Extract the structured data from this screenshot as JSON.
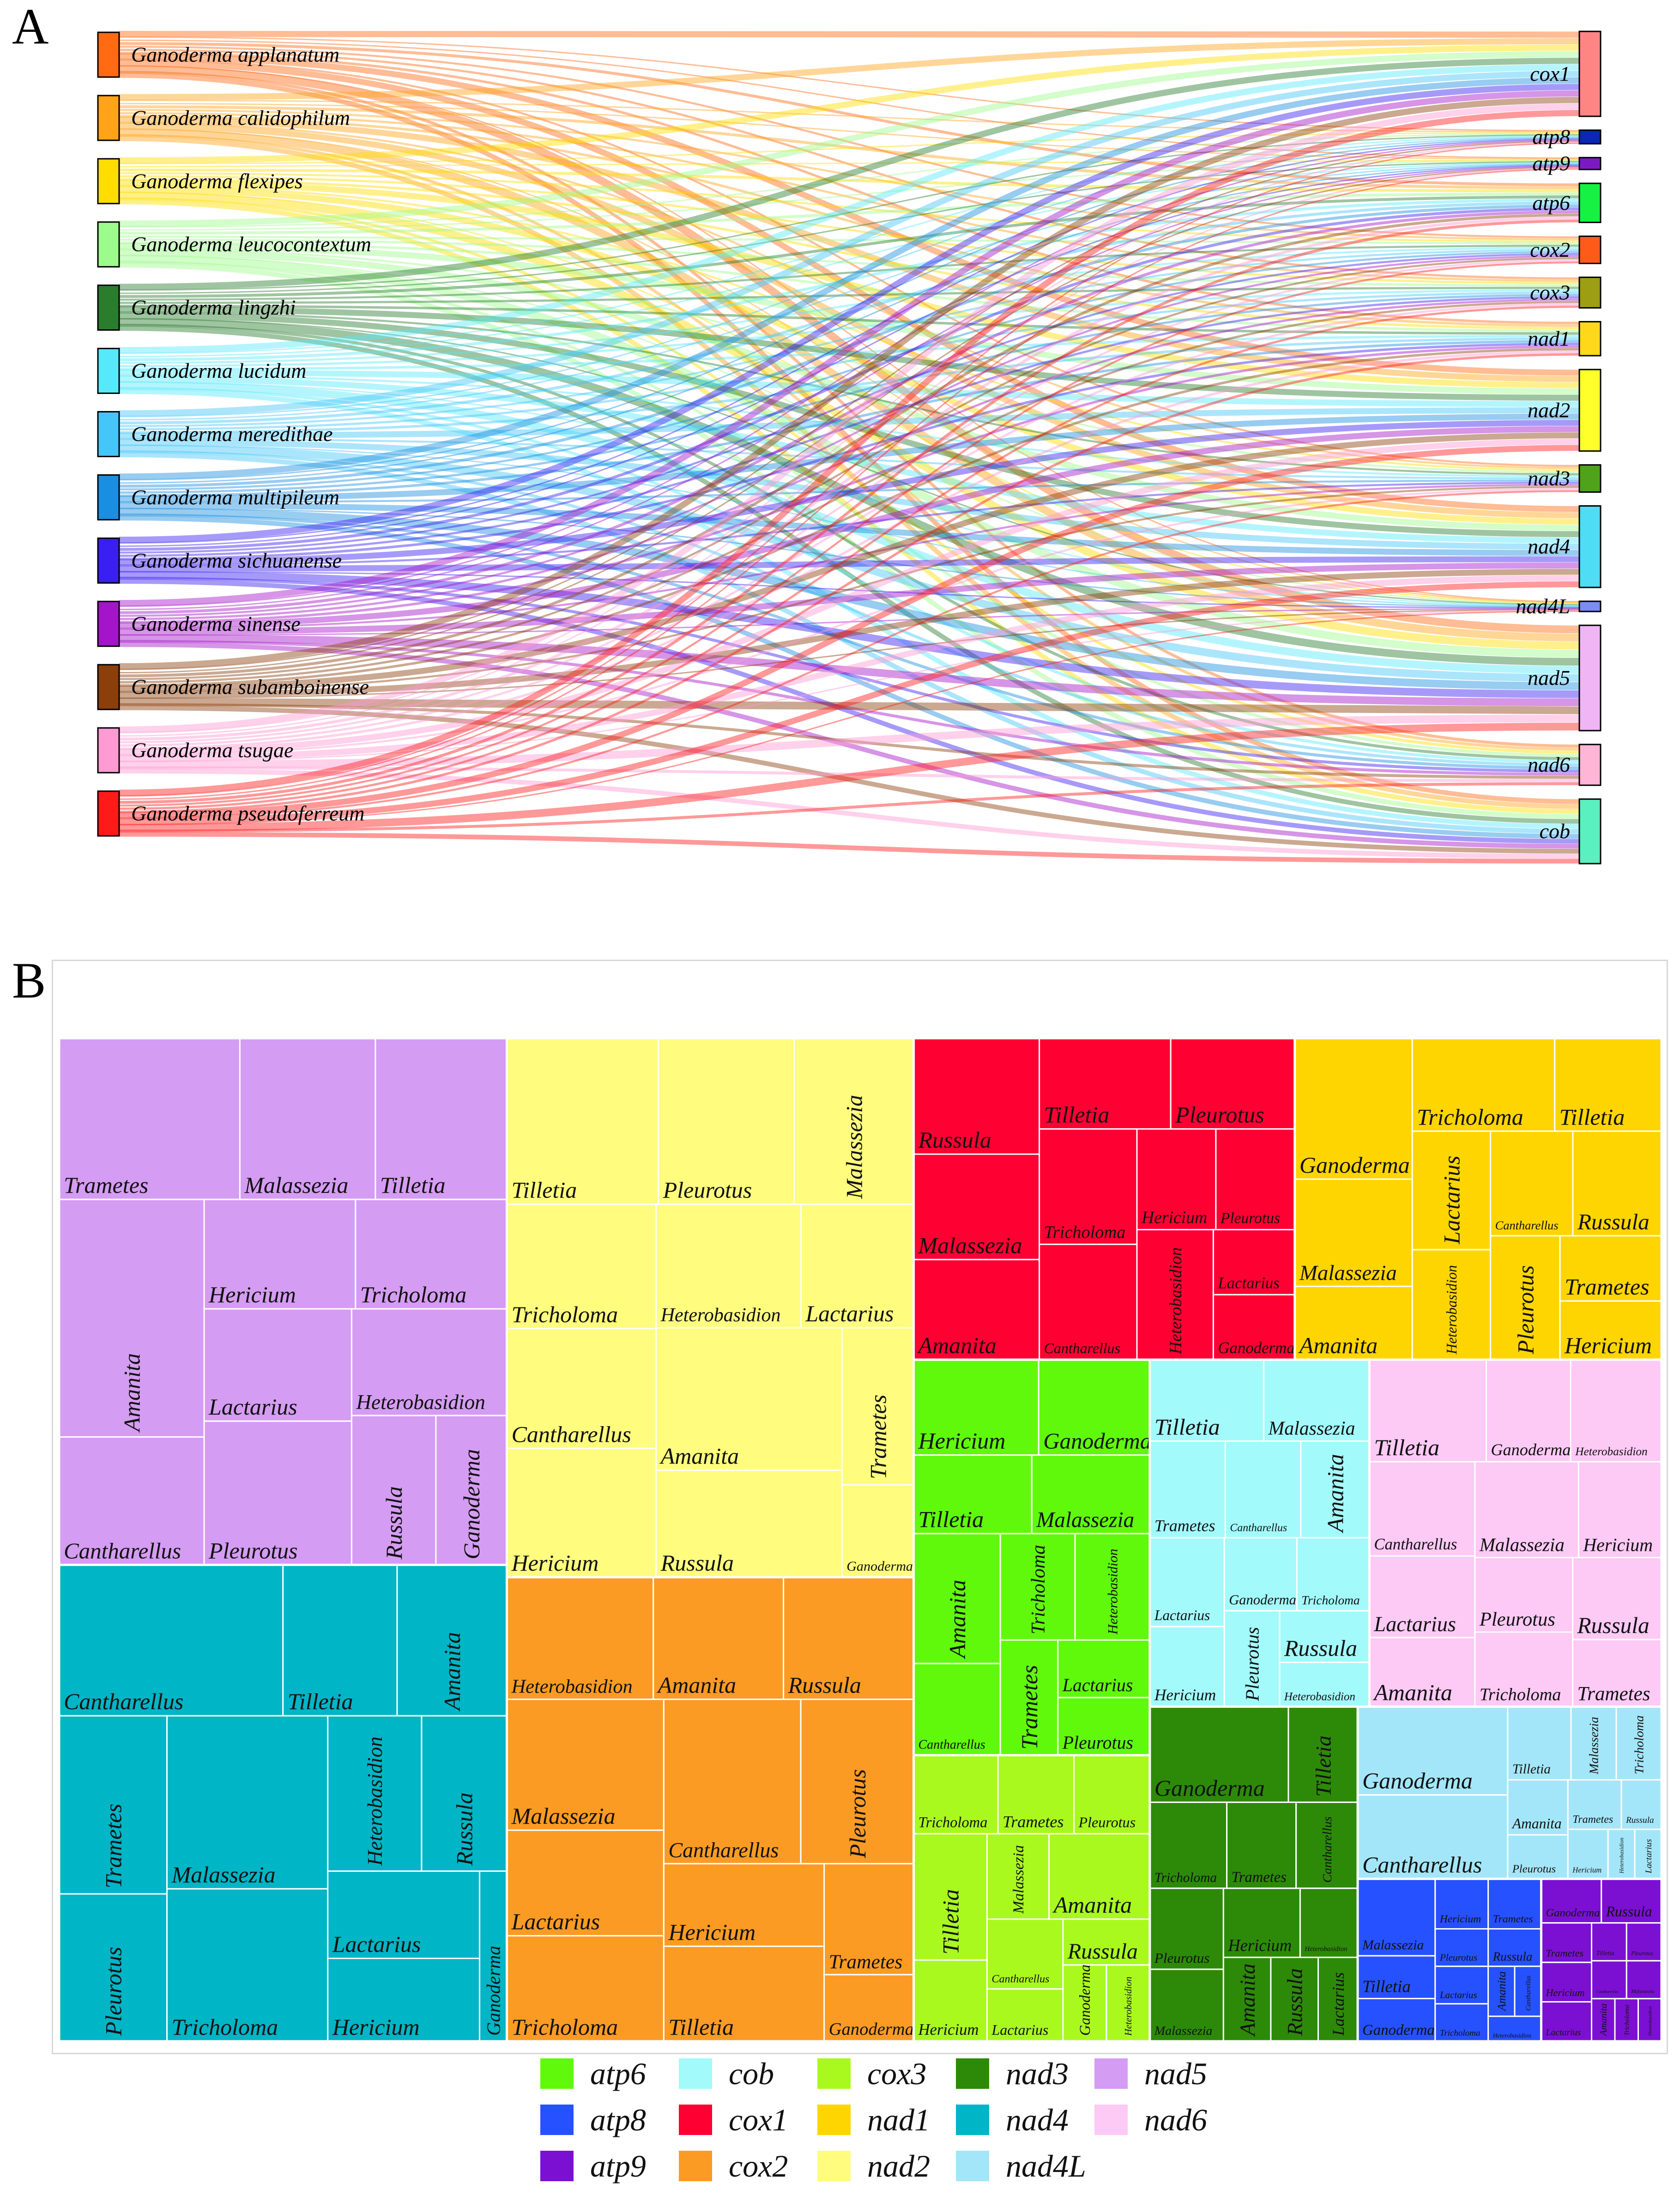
{
  "panels": {
    "a": "A",
    "b": "B"
  },
  "sankey": {
    "species": [
      {
        "name": "Ganoderma applanatum",
        "color": "#ff6a13"
      },
      {
        "name": "Ganoderma calidophilum",
        "color": "#ffa31a"
      },
      {
        "name": "Ganoderma flexipes",
        "color": "#ffdd00"
      },
      {
        "name": "Ganoderma leucocontextum",
        "color": "#9dfa8c"
      },
      {
        "name": "Ganoderma lingzhi",
        "color": "#2b7d2e"
      },
      {
        "name": "Ganoderma lucidum",
        "color": "#58e8fb"
      },
      {
        "name": "Ganoderma meredithae",
        "color": "#45c5f8"
      },
      {
        "name": "Ganoderma multipileum",
        "color": "#1a8ee0"
      },
      {
        "name": "Ganoderma sichuanense",
        "color": "#3a1ff2"
      },
      {
        "name": "Ganoderma sinense",
        "color": "#a414c8"
      },
      {
        "name": "Ganoderma subamboinense",
        "color": "#8b3f0a"
      },
      {
        "name": "Ganoderma tsugae",
        "color": "#ff9ad2"
      },
      {
        "name": "Ganoderma pseudoferreum",
        "color": "#ff1a1a"
      }
    ],
    "genes": [
      {
        "name": "cox1",
        "color": "#ff8585",
        "weight": 5
      },
      {
        "name": "atp8",
        "color": "#0a27b5",
        "weight": 0.8
      },
      {
        "name": "atp9",
        "color": "#7c1ac2",
        "weight": 0.7
      },
      {
        "name": "atp6",
        "color": "#16f243",
        "weight": 2.3
      },
      {
        "name": "cox2",
        "color": "#ff5a1a",
        "weight": 1.6
      },
      {
        "name": "cox3",
        "color": "#9e9e14",
        "weight": 1.8
      },
      {
        "name": "nad1",
        "color": "#ffd81a",
        "weight": 2.0
      },
      {
        "name": "nad2",
        "color": "#ffff2a",
        "weight": 4.8
      },
      {
        "name": "nad3",
        "color": "#4fa31a",
        "weight": 1.6
      },
      {
        "name": "nad4",
        "color": "#4fdcf5",
        "weight": 4.8
      },
      {
        "name": "nad4L",
        "color": "#7a8cf5",
        "weight": 0.6
      },
      {
        "name": "nad5",
        "color": "#f0b5f5",
        "weight": 6.2
      },
      {
        "name": "nad6",
        "color": "#ffb5d5",
        "weight": 2.4
      },
      {
        "name": "cob",
        "color": "#5af0c0",
        "weight": 3.8
      }
    ]
  },
  "treemap": {
    "groups": [
      {
        "gene": "nad5",
        "color": "#d59cf3",
        "cells": [
          [
            "Trametes",
            44
          ],
          [
            "Malassezia",
            33
          ],
          [
            "Tilletia",
            32
          ],
          [
            "Amanita",
            52
          ],
          [
            "Cantharellus",
            28
          ],
          [
            "Hericium",
            25
          ],
          [
            "Tricholoma",
            25
          ],
          [
            "Lactarius",
            25
          ],
          [
            "Pleurotus",
            32
          ],
          [
            "Heterobasidion",
            25
          ],
          [
            "Russula",
            19
          ],
          [
            "Ganoderma",
            16
          ]
        ]
      },
      {
        "gene": "nad4",
        "color": "#00b5c6",
        "cells": [
          [
            "Cantharellus",
            51
          ],
          [
            "Tilletia",
            26
          ],
          [
            "Amanita",
            25
          ],
          [
            "Trametes",
            29
          ],
          [
            "Pleurotus",
            24
          ],
          [
            "Malassezia",
            42
          ],
          [
            "Tricholoma",
            37
          ],
          [
            "Heterobasidion",
            22
          ],
          [
            "Russula",
            20
          ],
          [
            "Lactarius",
            20
          ],
          [
            "Hericium",
            19
          ],
          [
            "Ganoderma",
            7
          ]
        ]
      },
      {
        "gene": "nad2",
        "color": "#fffc7e",
        "cells": [
          [
            "Tilletia",
            38
          ],
          [
            "Pleurotus",
            34
          ],
          [
            "Malassezia",
            30
          ],
          [
            "Tricholoma",
            28
          ],
          [
            "Cantharellus",
            27
          ],
          [
            "Hericium",
            29
          ],
          [
            "Heterobasidion",
            27
          ],
          [
            "Lactarius",
            21
          ],
          [
            "Amanita",
            40
          ],
          [
            "Russula",
            30
          ],
          [
            "Trametes",
            17
          ],
          [
            "Ganoderma",
            10
          ]
        ]
      },
      {
        "gene": "cox2",
        "color": "#fb9b24",
        "cells": [
          [
            "Heterobasidion",
            27
          ],
          [
            "Amanita",
            24
          ],
          [
            "Russula",
            24
          ],
          [
            "Malassezia",
            31
          ],
          [
            "Lactarius",
            25
          ],
          [
            "Tricholoma",
            25
          ],
          [
            "Cantharellus",
            34
          ],
          [
            "Pleurotus",
            28
          ],
          [
            "Hericium",
            20
          ],
          [
            "Tilletia",
            23
          ],
          [
            "Trametes",
            15
          ],
          [
            "Ganoderma",
            9
          ]
        ]
      },
      {
        "gene": "cox1",
        "color": "#ff0033",
        "cells": [
          [
            "Russula",
            22
          ],
          [
            "Malassezia",
            20
          ],
          [
            "Amanita",
            19
          ],
          [
            "Tilletia",
            18
          ],
          [
            "Pleurotus",
            17
          ],
          [
            "Tricholoma",
            17
          ],
          [
            "Cantharellus",
            17
          ],
          [
            "Hericium",
            12
          ],
          [
            "Pleurotus",
            12
          ],
          [
            "Heterobasidion",
            15
          ],
          [
            "Lactarius",
            8
          ],
          [
            "Ganoderma",
            8
          ]
        ]
      },
      {
        "gene": "nad1",
        "color": "#ffd500",
        "cells": [
          [
            "Ganoderma",
            25
          ],
          [
            "Malassezia",
            19
          ],
          [
            "Amanita",
            13
          ],
          [
            "Tricholoma",
            20
          ],
          [
            "Tilletia",
            15
          ],
          [
            "Lactarius",
            14
          ],
          [
            "Heterobasidion",
            13
          ],
          [
            "Cantharellus",
            13
          ],
          [
            "Russula",
            14
          ],
          [
            "Pleurotus",
            13
          ],
          [
            "Trametes",
            10
          ],
          [
            "Hericium",
            9
          ]
        ]
      },
      {
        "gene": "atp6",
        "color": "#60f90b",
        "cells": [
          [
            "Hericium",
            18
          ],
          [
            "Ganoderma",
            16
          ],
          [
            "Tilletia",
            14
          ],
          [
            "Malassezia",
            14
          ],
          [
            "Amanita",
            17
          ],
          [
            "Cantharellus",
            12
          ],
          [
            "Tricholoma",
            12
          ],
          [
            "Heterobasidion",
            12
          ],
          [
            "Trametes",
            10
          ],
          [
            "Lactarius",
            8
          ],
          [
            "Pleurotus",
            8
          ]
        ]
      },
      {
        "gene": "cox3",
        "color": "#a9f91f",
        "cells": [
          [
            "Tricholoma",
            10
          ],
          [
            "Trametes",
            9
          ],
          [
            "Pleurotus",
            9
          ],
          [
            "Tilletia",
            14
          ],
          [
            "Hericium",
            9
          ],
          [
            "Malassezia",
            8
          ],
          [
            "Amanita",
            13
          ],
          [
            "Cantharellus",
            8
          ],
          [
            "Lactarius",
            6
          ],
          [
            "Russula",
            6
          ],
          [
            "Ganoderma",
            5
          ],
          [
            "Heterobasidion",
            5
          ]
        ]
      },
      {
        "gene": "cob",
        "color": "#a3fafb",
        "cells": [
          [
            "Tilletia",
            14
          ],
          [
            "Malassezia",
            13
          ],
          [
            "Trametes",
            11
          ],
          [
            "Cantharellus",
            11
          ],
          [
            "Amanita",
            10
          ],
          [
            "Lactarius",
            10
          ],
          [
            "Hericium",
            9
          ],
          [
            "Ganoderma",
            8
          ],
          [
            "Tricholoma",
            8
          ],
          [
            "Pleurotus",
            8
          ],
          [
            "Russula",
            7
          ],
          [
            "Heterobasidion",
            6
          ]
        ]
      },
      {
        "gene": "nad6",
        "color": "#fdc9f5",
        "cells": [
          [
            "Tilletia",
            18
          ],
          [
            "Ganoderma",
            13
          ],
          [
            "Heterobasidion",
            14
          ],
          [
            "Cantharellus",
            15
          ],
          [
            "Lactarius",
            13
          ],
          [
            "Amanita",
            11
          ],
          [
            "Malassezia",
            15
          ],
          [
            "Hericium",
            12
          ],
          [
            "Pleurotus",
            11
          ],
          [
            "Tricholoma",
            11
          ],
          [
            "Russula",
            11
          ],
          [
            "Trametes",
            9
          ]
        ]
      },
      {
        "gene": "nad3",
        "color": "#2d8a09",
        "cells": [
          [
            "Ganoderma",
            20
          ],
          [
            "Tilletia",
            10
          ],
          [
            "Tricholoma",
            10
          ],
          [
            "Trametes",
            9
          ],
          [
            "Cantharellus",
            8
          ],
          [
            "Pleurotus",
            9
          ],
          [
            "Malassezia",
            8
          ],
          [
            "Hericium",
            8
          ],
          [
            "Heterobasidion",
            6
          ],
          [
            "Amanita",
            6
          ],
          [
            "Russula",
            6
          ],
          [
            "Lactarius",
            5
          ]
        ]
      },
      {
        "gene": "nad4L",
        "color": "#a4e6f9",
        "cells": [
          [
            "Ganoderma",
            20
          ],
          [
            "Cantharellus",
            19
          ],
          [
            "Tilletia",
            7
          ],
          [
            "Malassezia",
            5
          ],
          [
            "Tricholoma",
            5
          ],
          [
            "Amanita",
            5
          ],
          [
            "Pleurotus",
            4
          ],
          [
            "Trametes",
            4
          ],
          [
            "Russula",
            3
          ],
          [
            "Hericium",
            3
          ],
          [
            "Heterobasidion",
            2
          ],
          [
            "Lactarius",
            2
          ]
        ]
      },
      {
        "gene": "atp8",
        "color": "#2651ff",
        "cells": [
          [
            "Malassezia",
            9
          ],
          [
            "Tilletia",
            5
          ],
          [
            "Ganoderma",
            5
          ],
          [
            "Hericium",
            4
          ],
          [
            "Trametes",
            4
          ],
          [
            "Pleurotus",
            3
          ],
          [
            "Russula",
            3
          ],
          [
            "Lactarius",
            3
          ],
          [
            "Tricholoma",
            3
          ],
          [
            "Amanita",
            2
          ],
          [
            "Cantharellus",
            2
          ],
          [
            "Heterobasidion",
            2
          ]
        ]
      },
      {
        "gene": "atp9",
        "color": "#7b10d3",
        "cells": [
          [
            "Ganoderma",
            4
          ],
          [
            "Russula",
            4
          ],
          [
            "Trametes",
            3
          ],
          [
            "Hericium",
            3
          ],
          [
            "Lactarius",
            3
          ],
          [
            "Tilletia",
            2
          ],
          [
            "Pleurotus",
            2
          ],
          [
            "Cantharellus",
            2
          ],
          [
            "Malassezia",
            2
          ],
          [
            "Amanita",
            1.5
          ],
          [
            "Tricholoma",
            1.5
          ],
          [
            "Heterobasidion",
            1.5
          ]
        ]
      }
    ]
  },
  "legend": [
    {
      "label": "atp6",
      "color": "#60f90b"
    },
    {
      "label": "cob",
      "color": "#a3fafb"
    },
    {
      "label": "cox3",
      "color": "#a9f91f"
    },
    {
      "label": "nad3",
      "color": "#2d8a09"
    },
    {
      "label": "nad5",
      "color": "#d59cf3"
    },
    {
      "label": "atp8",
      "color": "#2651ff"
    },
    {
      "label": "cox1",
      "color": "#ff0033"
    },
    {
      "label": "nad1",
      "color": "#ffd500"
    },
    {
      "label": "nad4",
      "color": "#00b5c6"
    },
    {
      "label": "nad6",
      "color": "#fdc9f5"
    },
    {
      "label": "atp9",
      "color": "#7b10d3"
    },
    {
      "label": "cox2",
      "color": "#fb9b24"
    },
    {
      "label": "nad2",
      "color": "#fffc7e"
    },
    {
      "label": "nad4L",
      "color": "#a4e6f9"
    }
  ],
  "chart_data": [
    {
      "type": "sankey",
      "source_nodes": [
        "Ganoderma applanatum",
        "Ganoderma calidophilum",
        "Ganoderma flexipes",
        "Ganoderma leucocontextum",
        "Ganoderma lingzhi",
        "Ganoderma lucidum",
        "Ganoderma meredithae",
        "Ganoderma multipileum",
        "Ganoderma sichuanense",
        "Ganoderma sinense",
        "Ganoderma subamboinense",
        "Ganoderma tsugae",
        "Ganoderma pseudoferreum"
      ],
      "target_nodes": [
        "cox1",
        "atp8",
        "atp9",
        "atp6",
        "cox2",
        "cox3",
        "nad1",
        "nad2",
        "nad3",
        "nad4",
        "nad4L",
        "nad5",
        "nad6",
        "cob"
      ],
      "links": "every species links to every gene"
    },
    {
      "type": "treemap",
      "groups": [
        "nad5",
        "nad4",
        "nad2",
        "cox2",
        "cox1",
        "nad1",
        "atp6",
        "cox3",
        "cob",
        "nad6",
        "nad3",
        "nad4L",
        "atp8",
        "atp9"
      ],
      "leaf_labels": [
        "Amanita",
        "Cantharellus",
        "Ganoderma",
        "Hericium",
        "Heterobasidion",
        "Lactarius",
        "Malassezia",
        "Pleurotus",
        "Russula",
        "Tilletia",
        "Trametes",
        "Tricholoma"
      ]
    }
  ]
}
